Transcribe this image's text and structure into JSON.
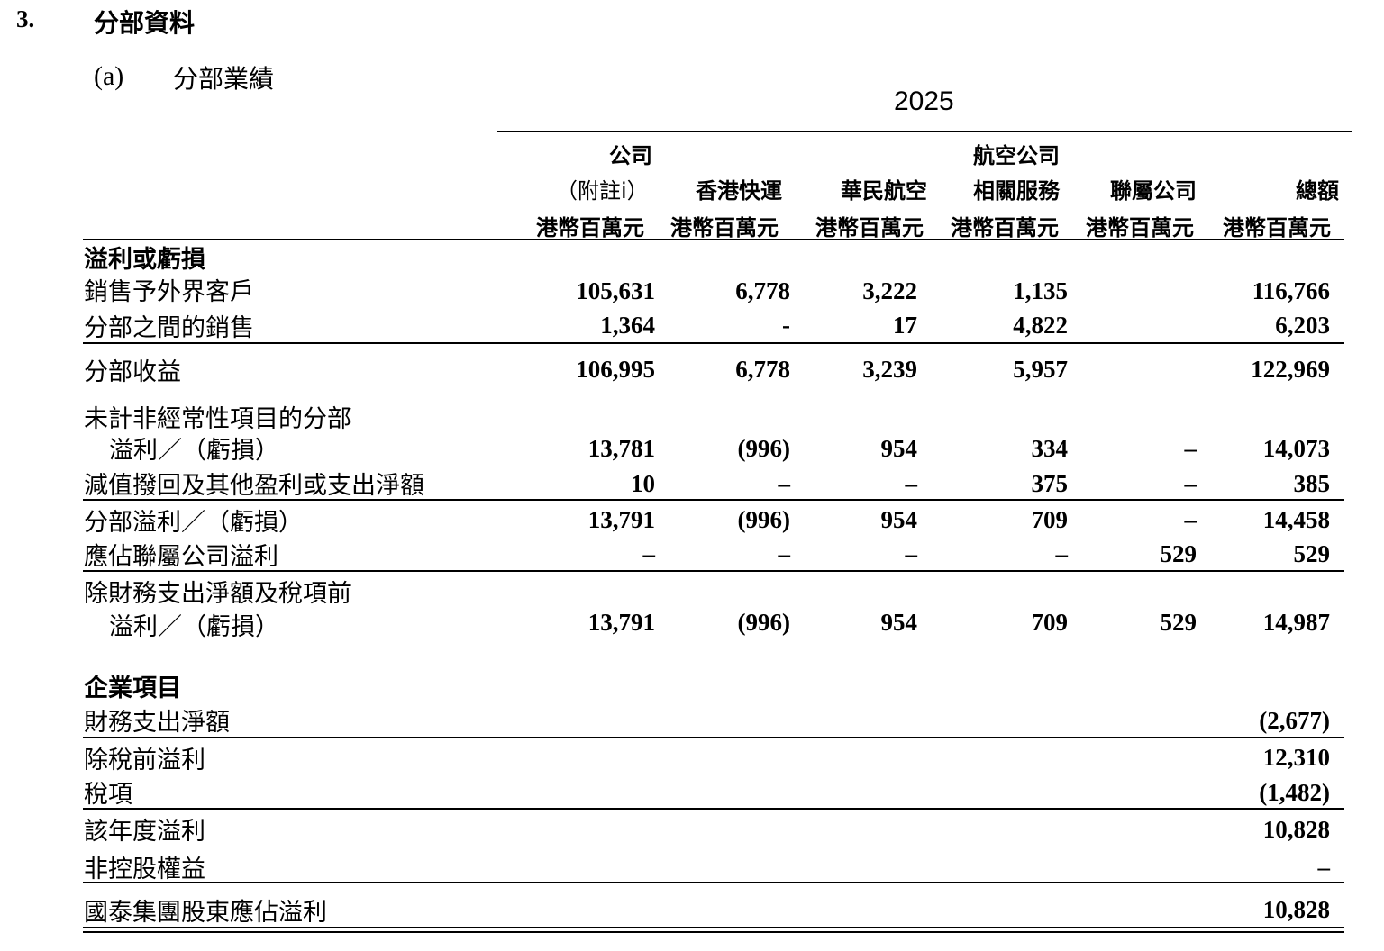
{
  "section": {
    "number": "3.",
    "title": "分部資料"
  },
  "subsection": {
    "letter": "(a)",
    "title": "分部業績"
  },
  "year": "2025",
  "columns": [
    {
      "line1": "公司",
      "line2": "（附註i）",
      "unit": "港幣百萬元"
    },
    {
      "line1": "",
      "line2": "香港快運",
      "unit": "港幣百萬元"
    },
    {
      "line1": "",
      "line2": "華民航空",
      "unit": "港幣百萬元"
    },
    {
      "line1": "航空公司",
      "line2": "相關服務",
      "unit": "港幣百萬元"
    },
    {
      "line1": "",
      "line2": "聯屬公司",
      "unit": "港幣百萬元"
    },
    {
      "line1": "",
      "line2": "總額",
      "unit": "港幣百萬元"
    }
  ],
  "rows": [
    {
      "label": "溢利或虧損",
      "bold": true,
      "values": [
        "",
        "",
        "",
        "",
        "",
        ""
      ]
    },
    {
      "label": "銷售予外界客戶",
      "values": [
        "105,631",
        "6,778",
        "3,222",
        "1,135",
        "",
        "116,766"
      ]
    },
    {
      "label": "分部之間的銷售",
      "values": [
        "1,364",
        "-",
        "17",
        "4,822",
        "",
        "6,203"
      ]
    },
    {
      "label": "分部收益",
      "values": [
        "106,995",
        "6,778",
        "3,239",
        "5,957",
        "",
        "122,969"
      ]
    },
    {
      "label": "未計非經常性項目的分部",
      "label2": "溢利／（虧損）",
      "values": [
        "13,781",
        "(996)",
        "954",
        "334",
        "–",
        "14,073"
      ]
    },
    {
      "label": "減值撥回及其他盈利或支出淨額",
      "values": [
        "10",
        "–",
        "–",
        "375",
        "–",
        "385"
      ]
    },
    {
      "label": "分部溢利／（虧損）",
      "values": [
        "13,791",
        "(996)",
        "954",
        "709",
        "–",
        "14,458"
      ]
    },
    {
      "label": "應佔聯屬公司溢利",
      "values": [
        "–",
        "–",
        "–",
        "–",
        "529",
        "529"
      ]
    },
    {
      "label": "除財務支出淨額及稅項前",
      "label2": "溢利／（虧損）",
      "values": [
        "13,791",
        "(996)",
        "954",
        "709",
        "529",
        "14,987"
      ]
    },
    {
      "label": "企業項目",
      "bold": true,
      "values": [
        "",
        "",
        "",
        "",
        "",
        ""
      ]
    },
    {
      "label": "財務支出淨額",
      "values": [
        "",
        "",
        "",
        "",
        "",
        "(2,677)"
      ]
    },
    {
      "label": "除稅前溢利",
      "values": [
        "",
        "",
        "",
        "",
        "",
        "12,310"
      ]
    },
    {
      "label": "稅項",
      "values": [
        "",
        "",
        "",
        "",
        "",
        "(1,482)"
      ]
    },
    {
      "label": "該年度溢利",
      "values": [
        "",
        "",
        "",
        "",
        "",
        "10,828"
      ]
    },
    {
      "label": "非控股權益",
      "values": [
        "",
        "",
        "",
        "",
        "",
        "–"
      ]
    },
    {
      "label": "國泰集團股東應佔溢利",
      "values": [
        "",
        "",
        "",
        "",
        "",
        "10,828"
      ]
    }
  ]
}
